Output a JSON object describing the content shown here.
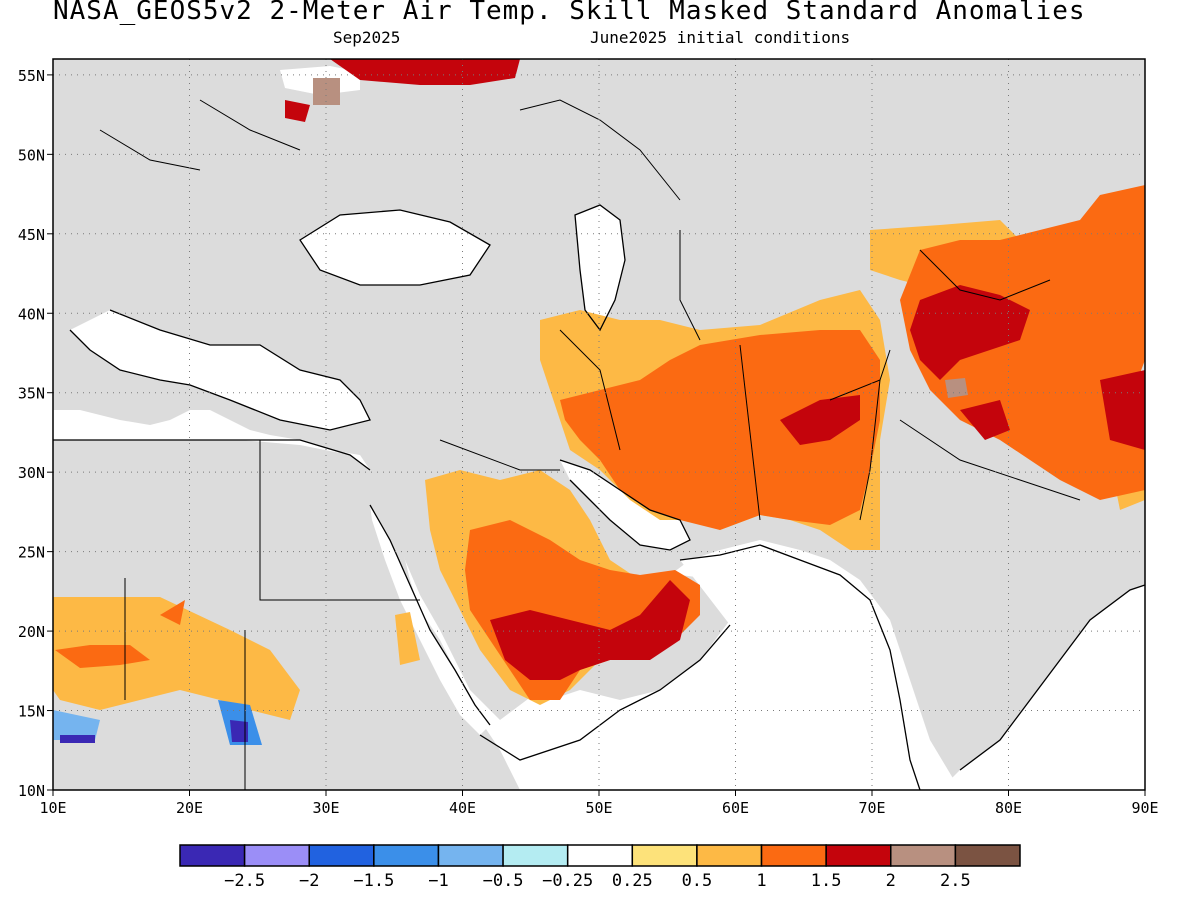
{
  "title": "NASA_GEOS5v2 2-Meter Air Temp. Skill Masked Standard Anomalies",
  "subtitle_left": "Sep2025",
  "subtitle_right": "June2025 initial conditions",
  "map": {
    "lon_range": [
      10,
      90
    ],
    "lat_range": [
      10,
      56
    ],
    "lon_ticks": [
      "10E",
      "20E",
      "30E",
      "40E",
      "50E",
      "60E",
      "70E",
      "80E",
      "90E"
    ],
    "lat_ticks": [
      "10N",
      "15N",
      "20N",
      "25N",
      "30N",
      "35N",
      "40N",
      "45N",
      "50N",
      "55N"
    ],
    "grid": true,
    "land_color": "#dcdcdc",
    "ocean_color": "#ffffff"
  },
  "legend": {
    "colors": [
      "#3a28b4",
      "#9b8ef7",
      "#2162e0",
      "#3b8fe9",
      "#75b4ef",
      "#b4ecf2",
      "#ffffff",
      "#fde27a",
      "#fdb945",
      "#fb6a12",
      "#c4040c",
      "#b89080",
      "#7b5342"
    ],
    "labels": [
      "-2.5",
      "-2",
      "-1.5",
      "-1",
      "-0.5",
      "-0.25",
      "0.25",
      "0.5",
      "1",
      "1.5",
      "2",
      "2.5"
    ]
  }
}
